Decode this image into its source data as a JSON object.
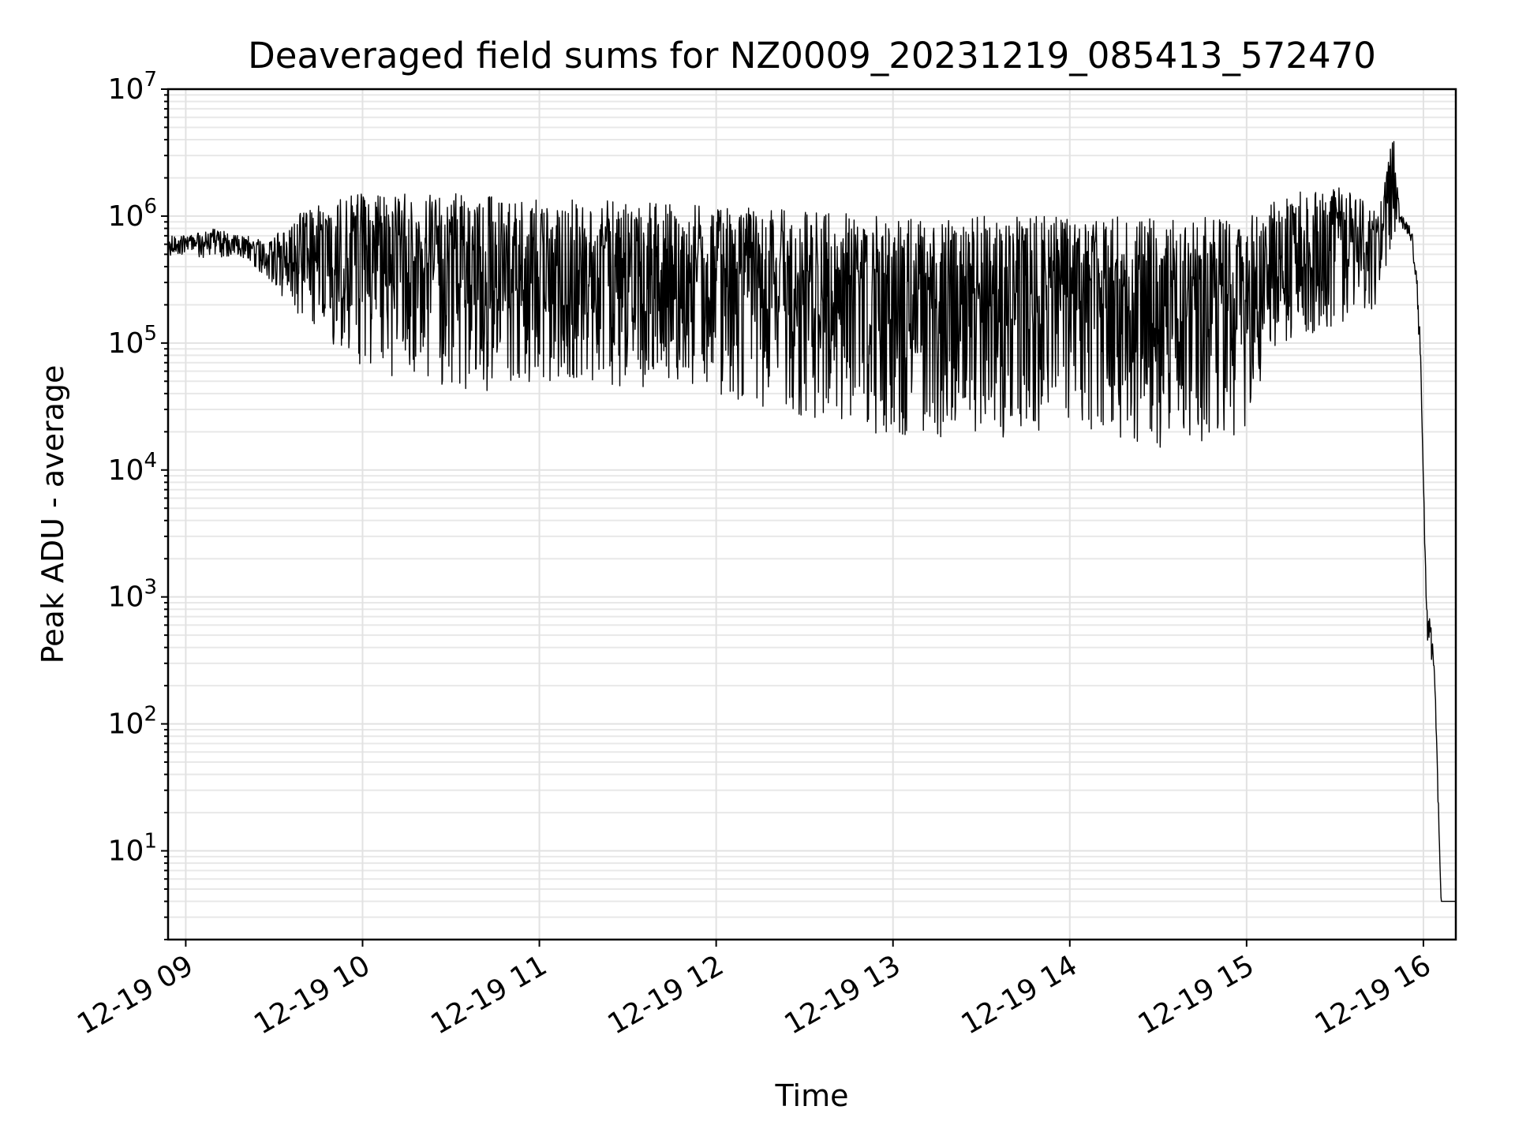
{
  "chart_data": {
    "type": "line",
    "title": "Deaveraged field sums for NZ0009_20231219_085413_572470",
    "xlabel": "Time",
    "ylabel": "Peak ADU - average",
    "x_scale": "time",
    "y_scale": "log",
    "xlim": [
      "2023-12-19 08:54",
      "2023-12-19 16:11"
    ],
    "ylim": [
      2,
      10000000
    ],
    "grid": true,
    "grid_minor_y": true,
    "line_color": "#000000",
    "x_ticks": [
      "12-19 09",
      "12-19 10",
      "12-19 11",
      "12-19 12",
      "12-19 13",
      "12-19 14",
      "12-19 15",
      "12-19 16"
    ],
    "y_ticks": [
      {
        "value": 10,
        "base": "10",
        "exp": "1"
      },
      {
        "value": 100,
        "base": "10",
        "exp": "2"
      },
      {
        "value": 1000,
        "base": "10",
        "exp": "3"
      },
      {
        "value": 10000,
        "base": "10",
        "exp": "4"
      },
      {
        "value": 100000,
        "base": "10",
        "exp": "5"
      },
      {
        "value": 1000000,
        "base": "10",
        "exp": "6"
      },
      {
        "value": 10000000,
        "base": "10",
        "exp": "7"
      }
    ],
    "series": [
      {
        "x": [
          "2023-12-19 08:54",
          "2023-12-19 09:00",
          "2023-12-19 09:10",
          "2023-12-19 09:18",
          "2023-12-19 09:22",
          "2023-12-19 09:28",
          "2023-12-19 09:35",
          "2023-12-19 09:45",
          "2023-12-19 10:00",
          "2023-12-19 10:20",
          "2023-12-19 10:40",
          "2023-12-19 11:00",
          "2023-12-19 11:30",
          "2023-12-19 12:00",
          "2023-12-19 12:30",
          "2023-12-19 13:00",
          "2023-12-19 13:30",
          "2023-12-19 14:00",
          "2023-12-19 14:30",
          "2023-12-19 15:00",
          "2023-12-19 15:10",
          "2023-12-19 15:30",
          "2023-12-19 15:45",
          "2023-12-19 15:50",
          "2023-12-19 15:52",
          "2023-12-19 15:53",
          "2023-12-19 15:56",
          "2023-12-19 15:58",
          "2023-12-19 15:59",
          "2023-12-19 16:00",
          "2023-12-19 16:01",
          "2023-12-19 16:02",
          "2023-12-19 16:03",
          "2023-12-19 16:04",
          "2023-12-19 16:05",
          "2023-12-19 16:06",
          "2023-12-19 16:11"
        ],
        "upper": [
          700000,
          700000,
          800000,
          700000,
          700000,
          600000,
          1000000,
          1300000,
          1500000,
          1500000,
          1500000,
          1400000,
          1300000,
          1200000,
          1100000,
          1000000,
          1000000,
          1000000,
          1000000,
          1000000,
          1400000,
          1800000,
          1100000,
          5000000,
          1000000,
          1000000,
          800000,
          300000,
          100000,
          10000,
          1000,
          700,
          500,
          200,
          30,
          4,
          4
        ],
        "lower": [
          450000,
          500000,
          450000,
          500000,
          400000,
          300000,
          200000,
          120000,
          60000,
          50000,
          40000,
          50000,
          45000,
          40000,
          25000,
          18000,
          18000,
          18000,
          15000,
          18000,
          100000,
          120000,
          200000,
          700000,
          900000,
          800000,
          600000,
          200000,
          50000,
          8000,
          500,
          400,
          300,
          120,
          20,
          4,
          4
        ]
      }
    ]
  }
}
